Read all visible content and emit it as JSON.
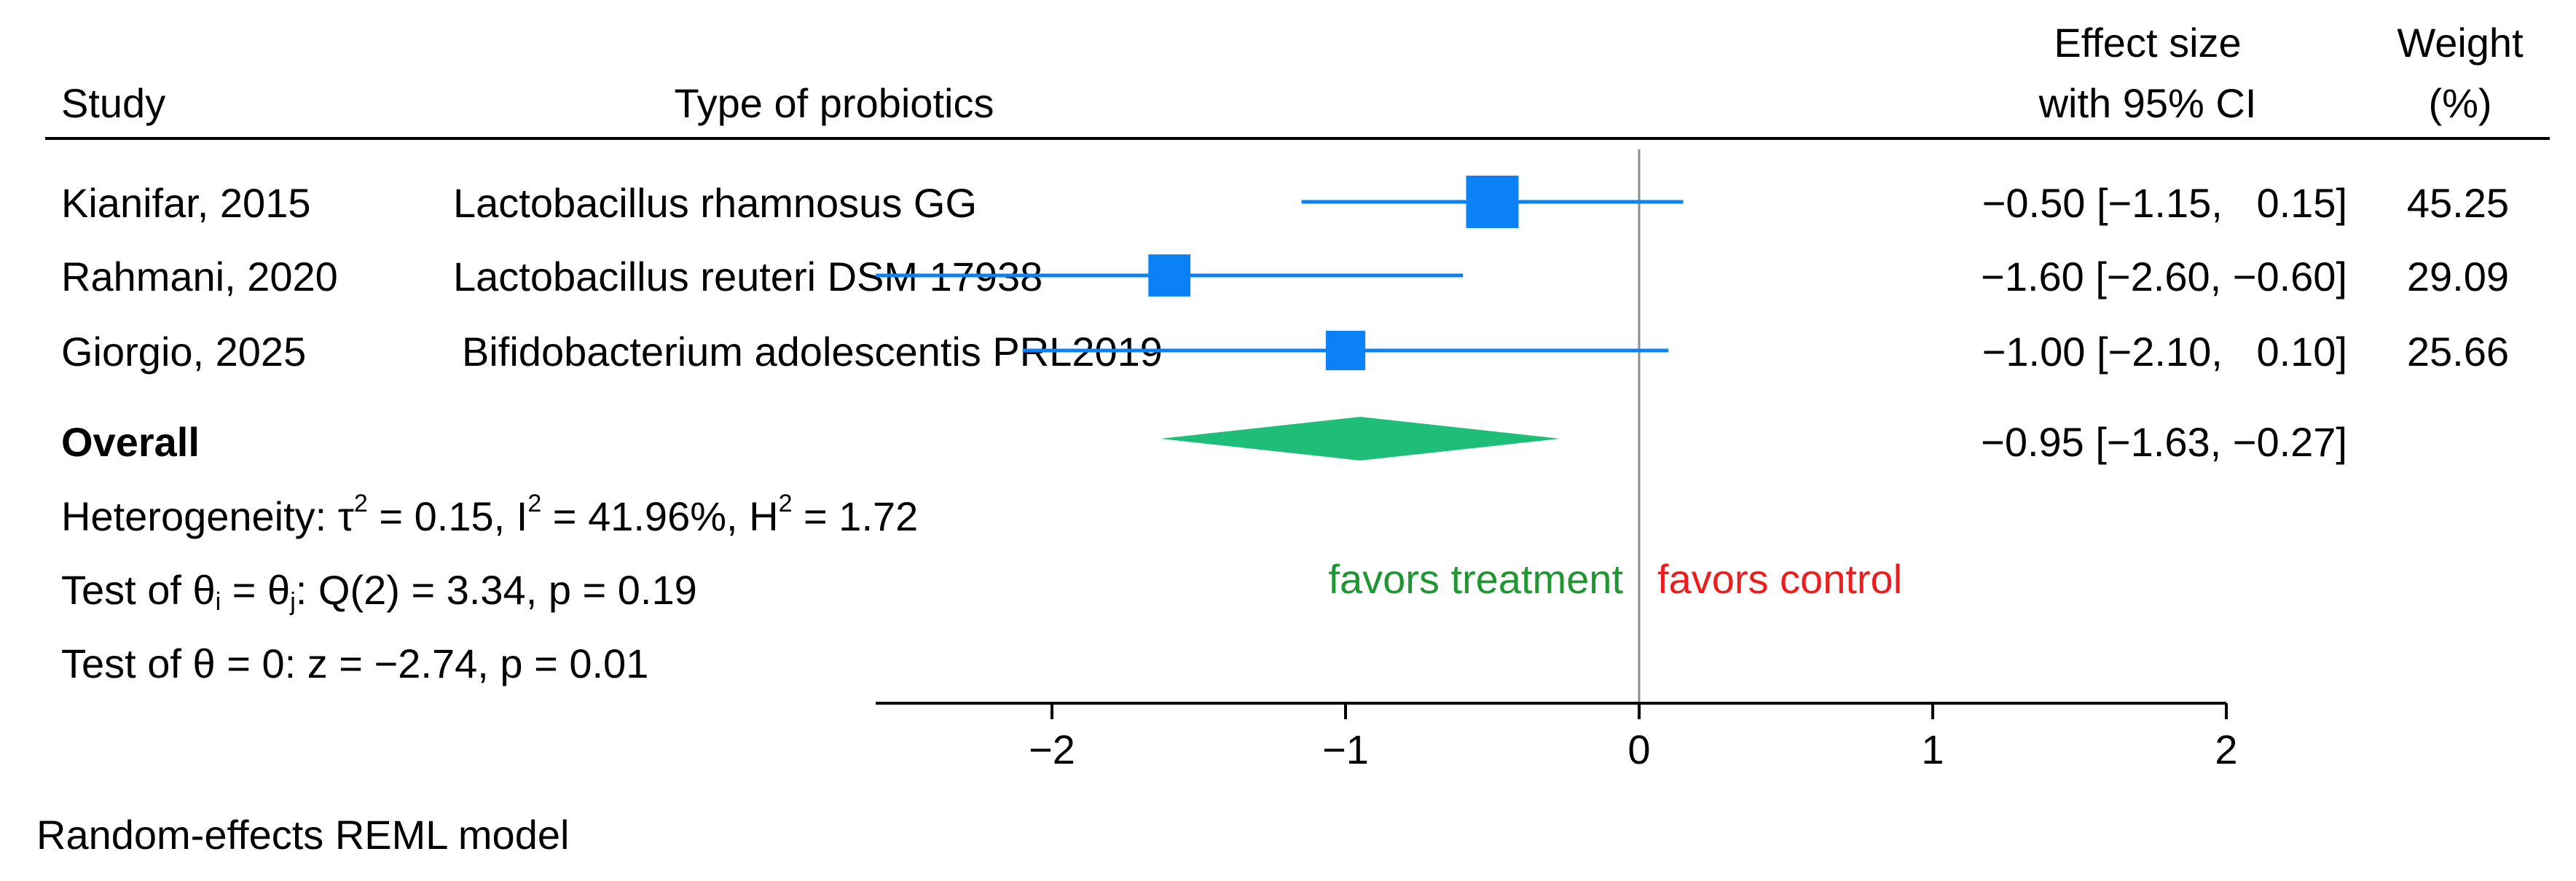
{
  "header": {
    "study": "Study",
    "probiotic_type": "Type of probiotics",
    "effect_line1": "Effect size",
    "effect_line2": "with 95% CI",
    "weight_line1": "Weight",
    "weight_line2": "(%)"
  },
  "overall": {
    "label": "Overall",
    "ci_text": "−0.95 [−1.63, −0.27]"
  },
  "stats": {
    "heterogeneity": {
      "prefix": "Heterogeneity: τ",
      "tau_exp": "2",
      "tau_val": " = 0.15, I",
      "i_exp": "2",
      "i_val": " = 41.96%, H",
      "h_exp": "2",
      "h_val": " = 1.72"
    },
    "test_equal": {
      "prefix": "Test of θ",
      "sub_i": "i",
      "mid": " = θ",
      "sub_j": "j",
      "rest": ": Q(2) = 3.34, p = 0.19"
    },
    "test_zero": "Test of θ = 0: z = −2.74, p = 0.01"
  },
  "favors": {
    "treatment": "favors treatment",
    "control": "favors control"
  },
  "model_note": "Random-effects REML model",
  "colors": {
    "study_marker": "#0a82f5",
    "overall_diamond": "#1ebe78",
    "favors_treatment": "#1e9632",
    "favors_control": "#eb1e1e",
    "reference_line": "#8c8c8c"
  },
  "chart_data": {
    "type": "forest",
    "xlim": [
      -2.6,
      2
    ],
    "ticks": [
      -2,
      -1,
      0,
      1,
      2
    ],
    "tick_labels": [
      "−2",
      "−1",
      "0",
      "1",
      "2"
    ],
    "reference_value": 0,
    "studies": [
      {
        "study": "Kianifar, 2015",
        "probiotic": "Lactobacillus rhamnosus GG",
        "effect": -0.5,
        "lower": -1.15,
        "upper": 0.15,
        "ci_text": "−0.50 [−1.15,   0.15]",
        "weight": 45.25,
        "weight_text": "45.25"
      },
      {
        "study": "Rahmani, 2020",
        "probiotic": "Lactobacillus reuteri DSM 17938",
        "effect": -1.6,
        "lower": -2.6,
        "upper": -0.6,
        "ci_text": "−1.60 [−2.60, −0.60]",
        "weight": 29.09,
        "weight_text": "29.09"
      },
      {
        "study": "Giorgio, 2025",
        "probiotic": "Bifidobacterium adolescentis PRL2019",
        "effect": -1.0,
        "lower": -2.1,
        "upper": 0.1,
        "ci_text": "−1.00 [−2.10,   0.10]",
        "weight": 25.66,
        "weight_text": "25.66"
      }
    ],
    "overall": {
      "effect": -0.95,
      "lower": -1.63,
      "upper": -0.27
    }
  }
}
